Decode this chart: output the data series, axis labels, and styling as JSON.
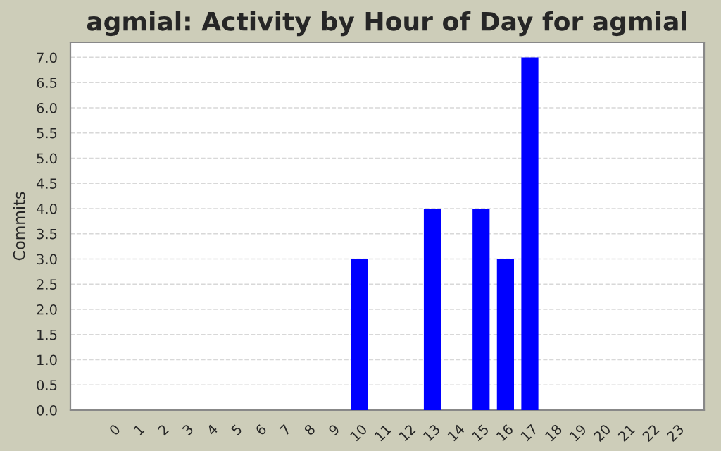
{
  "chart_data": {
    "type": "bar",
    "title": "agmial: Activity by Hour of Day for agmial",
    "ylabel": "Commits",
    "categories": [
      "0",
      "1",
      "2",
      "3",
      "4",
      "5",
      "6",
      "7",
      "8",
      "9",
      "10",
      "11",
      "12",
      "13",
      "14",
      "15",
      "16",
      "17",
      "18",
      "19",
      "20",
      "21",
      "22",
      "23"
    ],
    "values": [
      0,
      0,
      0,
      0,
      0,
      0,
      0,
      0,
      0,
      0,
      3,
      0,
      0,
      4,
      0,
      4,
      3,
      7,
      0,
      0,
      0,
      0,
      0,
      0
    ],
    "color": "#0000ff",
    "ylim": [
      0,
      7.3
    ],
    "yticks": [
      {
        "value": 0,
        "label": "0.0"
      },
      {
        "value": 0.5,
        "label": "0.5"
      },
      {
        "value": 1,
        "label": "1.0"
      },
      {
        "value": 1.5,
        "label": "1.5"
      },
      {
        "value": 2,
        "label": "2.0"
      },
      {
        "value": 2.5,
        "label": "2.5"
      },
      {
        "value": 3,
        "label": "3.0"
      },
      {
        "value": 3.5,
        "label": "3.5"
      },
      {
        "value": 4,
        "label": "4.0"
      },
      {
        "value": 4.5,
        "label": "4.5"
      },
      {
        "value": 5,
        "label": "5.0"
      },
      {
        "value": 5.5,
        "label": "5.5"
      },
      {
        "value": 6,
        "label": "6.0"
      },
      {
        "value": 6.5,
        "label": "6.5"
      },
      {
        "value": 7,
        "label": "7.0"
      }
    ],
    "grid": "y"
  }
}
